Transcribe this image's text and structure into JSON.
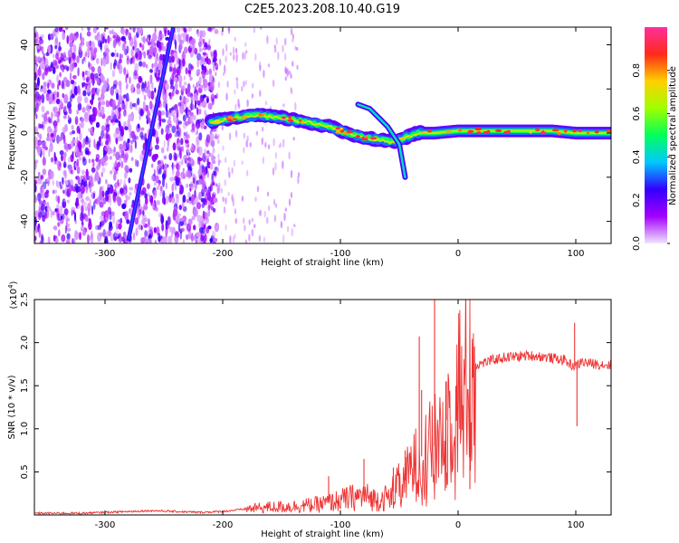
{
  "title": "C2E5.2023.208.10.40.G19",
  "chart_data": [
    {
      "type": "heatmap",
      "xlabel": "Height of straight line (km)",
      "ylabel": "Frequency (Hz)",
      "xlim": [
        -360,
        130
      ],
      "ylim": [
        -50,
        48
      ],
      "xticks": [
        "-300",
        "-200",
        "-100",
        "0",
        "100"
      ],
      "xtick_values": [
        -300,
        -200,
        -100,
        0,
        100
      ],
      "yticks": [
        "40",
        "20",
        "0",
        "-20",
        "-40"
      ],
      "ytick_values": [
        40,
        20,
        0,
        -20,
        -40
      ],
      "colorbar": {
        "label": "Normalized spectral amplitude",
        "range": [
          0,
          1
        ],
        "ticks": [
          "0.0",
          "0.2",
          "0.4",
          "0.6",
          "0.8"
        ],
        "tick_values": [
          0,
          0.2,
          0.4,
          0.6,
          0.8
        ],
        "colormap": [
          "#f0e6ff",
          "#a300ff",
          "#3200ff",
          "#00c8ff",
          "#00ff5a",
          "#a0ff00",
          "#ffd000",
          "#ff2a1a",
          "#ff2f9c"
        ]
      },
      "features": {
        "noise_region_x": [
          -360,
          -205
        ],
        "diagonal_track": [
          [
            -280,
            -48
          ],
          [
            -242,
            48
          ]
        ],
        "main_track": [
          [
            -210,
            5
          ],
          [
            -190,
            7
          ],
          [
            -170,
            8
          ],
          [
            -150,
            7
          ],
          [
            -130,
            5
          ],
          [
            -110,
            3
          ],
          [
            -95,
            0
          ],
          [
            -80,
            -2
          ],
          [
            -65,
            -3
          ],
          [
            -55,
            -4
          ],
          [
            -45,
            -2
          ],
          [
            -35,
            0
          ],
          [
            -20,
            0
          ],
          [
            0,
            1
          ],
          [
            20,
            1
          ],
          [
            40,
            1
          ],
          [
            60,
            1
          ],
          [
            80,
            1
          ],
          [
            100,
            0
          ],
          [
            130,
            0
          ]
        ],
        "side_branch": [
          [
            -85,
            13
          ],
          [
            -75,
            11
          ],
          [
            -60,
            3
          ],
          [
            -50,
            -5
          ],
          [
            -45,
            -20
          ]
        ]
      }
    },
    {
      "type": "line",
      "xlabel": "Height of straight line (km)",
      "ylabel": "SNR (10 * v/v)",
      "y_multiplier": "(x10",
      "y_multiplier_exp": "4",
      "y_multiplier_close": ")",
      "xlim": [
        -360,
        130
      ],
      "ylim": [
        0,
        2.5
      ],
      "xticks": [
        "-300",
        "-200",
        "-100",
        "0",
        "100"
      ],
      "xtick_values": [
        -300,
        -200,
        -100,
        0,
        100
      ],
      "yticks": [
        "0.5",
        "1.0",
        "1.5",
        "2.0",
        "2.5"
      ],
      "ytick_values": [
        0.5,
        1.0,
        1.5,
        2.0,
        2.5
      ],
      "color": "#ee3333",
      "series": [
        {
          "x": [
            -360,
            -340,
            -320,
            -300,
            -280,
            -260,
            -240,
            -220,
            -200,
            -180,
            -160,
            -140,
            -120,
            -110,
            -100,
            -90,
            -80,
            -70,
            -60,
            -50,
            -45,
            -40,
            -35,
            -30,
            -25,
            -20,
            -15,
            -10,
            -5,
            0,
            5,
            10,
            15,
            20,
            30,
            40,
            50,
            60,
            70,
            80,
            90,
            95,
            100,
            105,
            110,
            120,
            130
          ],
          "values": [
            0.02,
            0.02,
            0.02,
            0.03,
            0.04,
            0.05,
            0.04,
            0.03,
            0.04,
            0.07,
            0.09,
            0.1,
            0.12,
            0.14,
            0.17,
            0.2,
            0.22,
            0.18,
            0.2,
            0.35,
            0.4,
            0.55,
            0.6,
            0.7,
            0.75,
            0.8,
            0.95,
            1.1,
            1.25,
            1.45,
            1.6,
            1.7,
            1.74,
            1.76,
            1.8,
            1.83,
            1.84,
            1.85,
            1.84,
            1.82,
            1.8,
            1.75,
            1.72,
            1.78,
            1.76,
            1.75,
            1.74
          ]
        }
      ],
      "spikes": [
        {
          "x": -110,
          "value": 0.45
        },
        {
          "x": -80,
          "value": 0.65
        },
        {
          "x": -55,
          "value": 0.55
        },
        {
          "x": -45,
          "value": 0.75
        },
        {
          "x": -33,
          "value": 2.07
        },
        {
          "x": -31,
          "value": 1.45
        },
        {
          "x": -20,
          "value": 2.5
        },
        {
          "x": -10,
          "value": 1.55
        },
        {
          "x": 10,
          "value": 0.3
        },
        {
          "x": 99,
          "value": 2.23
        },
        {
          "x": 101,
          "value": 1.03
        }
      ]
    }
  ]
}
